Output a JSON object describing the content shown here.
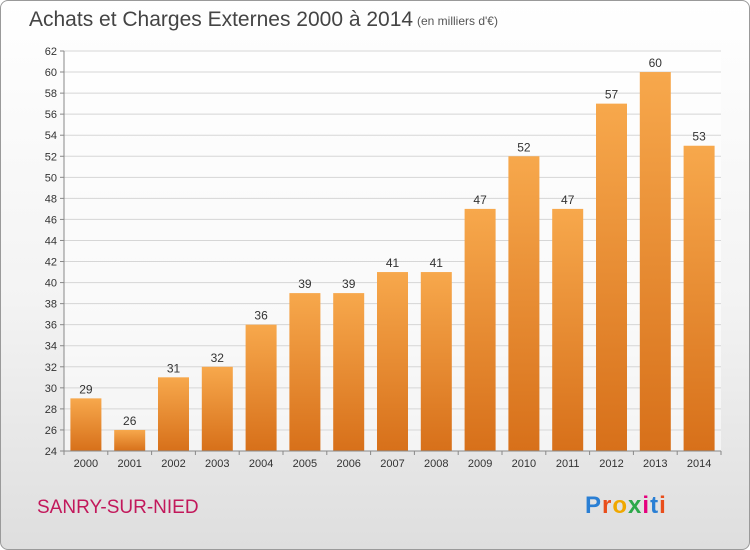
{
  "header": {
    "title": "Achats et Charges Externes 2000 à 2014",
    "subtitle": "(en milliers d'€)"
  },
  "footer": {
    "location": "SANRY-SUR-NIED",
    "logo": "Proxiti"
  },
  "colors": {
    "bar_light": "#f7a84c",
    "bar_dark": "#d7701a",
    "location": "#c2185b"
  },
  "chart_data": {
    "type": "bar",
    "title": "Achats et Charges Externes 2000 à 2014",
    "subtitle": "(en milliers d'€)",
    "categories": [
      "2000",
      "2001",
      "2002",
      "2003",
      "2004",
      "2005",
      "2006",
      "2007",
      "2008",
      "2009",
      "2010",
      "2011",
      "2012",
      "2013",
      "2014"
    ],
    "values": [
      29,
      26,
      31,
      32,
      36,
      39,
      39,
      41,
      41,
      47,
      52,
      47,
      57,
      60,
      53
    ],
    "xlabel": "",
    "ylabel": "",
    "ylim": [
      24,
      62
    ],
    "yticks": [
      24,
      26,
      28,
      30,
      32,
      34,
      36,
      38,
      40,
      42,
      44,
      46,
      48,
      50,
      52,
      54,
      56,
      58,
      60,
      62
    ],
    "grid": true,
    "legend": "none"
  }
}
